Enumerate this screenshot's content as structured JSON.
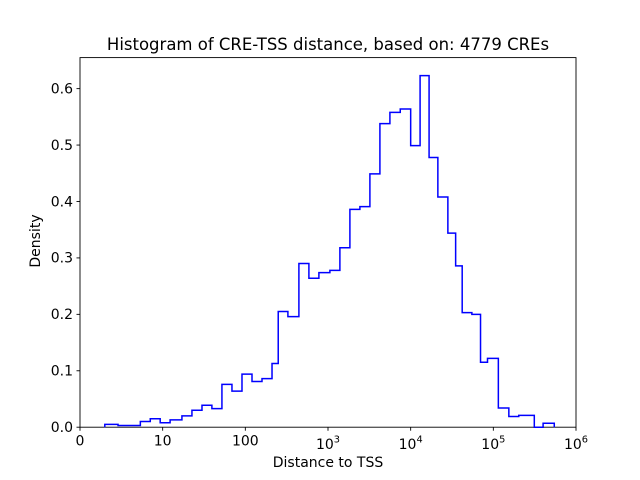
{
  "chart_data": {
    "type": "histogram",
    "title": "Histogram of CRE-TSS distance, based on: 4779 CREs",
    "xlabel": "Distance to TSS",
    "ylabel": "Density",
    "line_color": "#0000ff",
    "axis_color": "#000000",
    "background": "#ffffff",
    "x_scale": "symlog",
    "linthresh": 10,
    "xlim": [
      0,
      1000000
    ],
    "ylim": [
      0,
      0.655
    ],
    "grid": false,
    "legend": "none",
    "bin_edges": [
      3.0,
      4.6,
      7.3,
      8.5,
      9.7,
      12.3,
      17.1,
      22.6,
      29.9,
      39.4,
      52.1,
      68.9,
      91.1,
      120.4,
      159.1,
      210.3,
      250.0,
      327.3,
      444.6,
      587.5,
      776.2,
      1054.0,
      1392.7,
      1840.2,
      2431.4,
      3212.8,
      4245.3,
      5609.6,
      7482.2,
      10000.0,
      13000.0,
      16700.0,
      21330.0,
      28184.0,
      35000.0,
      42000.0,
      55000.0,
      70000.0,
      85000.0,
      115000.0,
      154000.0,
      203000.0,
      313000.0,
      400000.0,
      546000.0
    ],
    "densities": [
      0.005,
      0.003,
      0.01,
      0.015,
      0.008,
      0.013,
      0.02,
      0.03,
      0.039,
      0.033,
      0.076,
      0.064,
      0.094,
      0.081,
      0.086,
      0.113,
      0.205,
      0.196,
      0.29,
      0.264,
      0.274,
      0.278,
      0.318,
      0.386,
      0.391,
      0.449,
      0.538,
      0.558,
      0.564,
      0.499,
      0.623,
      0.478,
      0.408,
      0.344,
      0.286,
      0.203,
      0.2,
      0.115,
      0.122,
      0.034,
      0.019,
      0.021,
      0.0,
      0.007
    ],
    "xticks": [
      {
        "value": 0,
        "label": "0"
      },
      {
        "value": 10,
        "label": "10"
      },
      {
        "value": 100,
        "label": "100"
      },
      {
        "value": 1000,
        "label": "10",
        "exp": "3"
      },
      {
        "value": 10000,
        "label": "10",
        "exp": "4"
      },
      {
        "value": 100000,
        "label": "10",
        "exp": "5"
      },
      {
        "value": 1000000,
        "label": "10",
        "exp": "6"
      }
    ],
    "yticks": [
      {
        "value": 0.0,
        "label": "0.0"
      },
      {
        "value": 0.1,
        "label": "0.1"
      },
      {
        "value": 0.2,
        "label": "0.2"
      },
      {
        "value": 0.3,
        "label": "0.3"
      },
      {
        "value": 0.4,
        "label": "0.4"
      },
      {
        "value": 0.5,
        "label": "0.5"
      },
      {
        "value": 0.6,
        "label": "0.6"
      }
    ]
  }
}
